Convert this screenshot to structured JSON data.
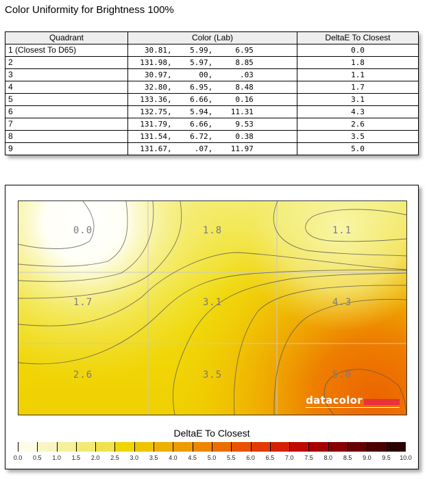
{
  "title": "Color Uniformity for Brightness 100%",
  "table": {
    "headers": [
      "Quadrant",
      "Color (Lab)",
      "DeltaE To Closest"
    ],
    "rows": [
      {
        "quadrant": "1 (Closest To D65)",
        "lab": "   30.81,    5.99,     6.95",
        "deltae": "0.0"
      },
      {
        "quadrant": "2",
        "lab": "  131.98,    5.97,     8.85",
        "deltae": "1.8"
      },
      {
        "quadrant": "3",
        "lab": "   30.97,      00,      .03",
        "deltae": "1.1"
      },
      {
        "quadrant": "4",
        "lab": "   32.80,    6.95,     8.48",
        "deltae": "1.7"
      },
      {
        "quadrant": "5",
        "lab": "  133.36,    6.66,     0.16",
        "deltae": "3.1"
      },
      {
        "quadrant": "6",
        "lab": "  132.75,    5.94,    11.31",
        "deltae": "4.3"
      },
      {
        "quadrant": "7",
        "lab": "  131.79,    6.66,     9.53",
        "deltae": "2.6"
      },
      {
        "quadrant": "8",
        "lab": "  131.54,    6.72,     0.38",
        "deltae": "3.5"
      },
      {
        "quadrant": "9",
        "lab": "  131.67,     .07,    11.97",
        "deltae": "5.0"
      }
    ]
  },
  "chart_data": {
    "type": "heatmap",
    "title": "DeltaE To Closest",
    "grid": {
      "rows": 3,
      "cols": 3
    },
    "values": [
      [
        0.0,
        1.8,
        1.1
      ],
      [
        1.7,
        3.1,
        4.3
      ],
      [
        2.6,
        3.5,
        5.0
      ]
    ],
    "labels": [
      [
        "0.0",
        "1.8",
        "1.1"
      ],
      [
        "1.7",
        "3.1",
        "4.3"
      ],
      [
        "2.6",
        "3.5",
        "5.0"
      ]
    ],
    "contours": true,
    "colorbar": {
      "min": 0.0,
      "max": 10.0,
      "step": 0.5,
      "ticks": [
        "0.0",
        "0.5",
        "1.0",
        "1.5",
        "2.0",
        "2.5",
        "3.0",
        "3.5",
        "4.0",
        "4.5",
        "5.0",
        "5.5",
        "6.0",
        "6.5",
        "7.0",
        "7.5",
        "8.0",
        "8.5",
        "9.0",
        "9.5",
        "10.0"
      ],
      "colors": [
        "#fefce8",
        "#f9f5c2",
        "#f5f09a",
        "#f2ea74",
        "#efe24c",
        "#f0d600",
        "#eec400",
        "#eeb000",
        "#ee9c00",
        "#ee8600",
        "#ec6e00",
        "#e85200",
        "#e23a00",
        "#d42000",
        "#c00a00",
        "#a80000",
        "#880000",
        "#680000",
        "#4a0000",
        "#2a0000"
      ]
    },
    "brand": "datacolor",
    "brand_color": "#e8333a"
  }
}
